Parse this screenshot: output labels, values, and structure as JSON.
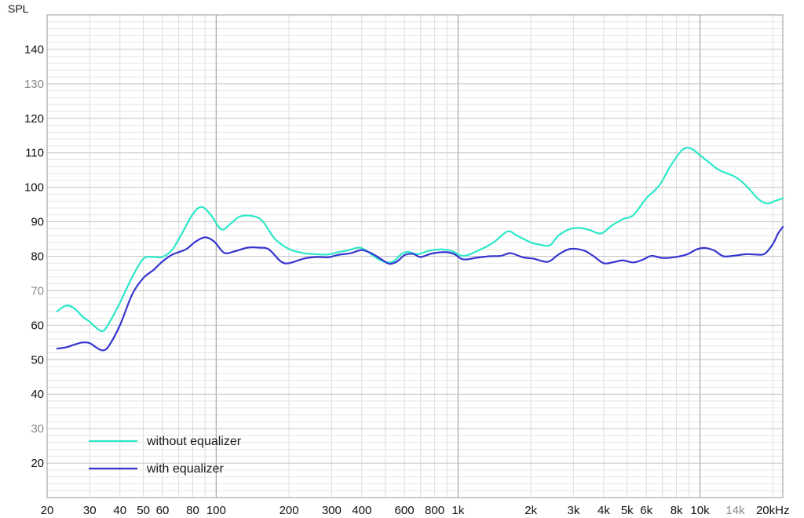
{
  "chart_data": {
    "type": "line",
    "title": "",
    "ylabel": "SPL",
    "xlabel": "",
    "x_scale": "log",
    "xlim": [
      20,
      22000
    ],
    "ylim": [
      10,
      150
    ],
    "grid": true,
    "legend_position": "bottom-left",
    "x_ticks": [
      {
        "value": 20,
        "label": "20",
        "muted": false
      },
      {
        "value": 30,
        "label": "30",
        "muted": false
      },
      {
        "value": 40,
        "label": "40",
        "muted": false
      },
      {
        "value": 50,
        "label": "50",
        "muted": false
      },
      {
        "value": 60,
        "label": "60",
        "muted": false
      },
      {
        "value": 80,
        "label": "80",
        "muted": false
      },
      {
        "value": 100,
        "label": "100",
        "muted": false
      },
      {
        "value": 200,
        "label": "200",
        "muted": false
      },
      {
        "value": 300,
        "label": "300",
        "muted": false
      },
      {
        "value": 400,
        "label": "400",
        "muted": false
      },
      {
        "value": 600,
        "label": "600",
        "muted": false
      },
      {
        "value": 800,
        "label": "800",
        "muted": false
      },
      {
        "value": 1000,
        "label": "1k",
        "muted": false
      },
      {
        "value": 2000,
        "label": "2k",
        "muted": false
      },
      {
        "value": 3000,
        "label": "3k",
        "muted": false
      },
      {
        "value": 4000,
        "label": "4k",
        "muted": false
      },
      {
        "value": 5000,
        "label": "5k",
        "muted": false
      },
      {
        "value": 6000,
        "label": "6k",
        "muted": false
      },
      {
        "value": 8000,
        "label": "8k",
        "muted": false
      },
      {
        "value": 10000,
        "label": "10k",
        "muted": false
      },
      {
        "value": 14000,
        "label": "14k",
        "muted": true
      },
      {
        "value": 20000,
        "label": "20kHz",
        "muted": false
      }
    ],
    "y_ticks": [
      {
        "value": 20,
        "label": "20",
        "muted": false
      },
      {
        "value": 30,
        "label": "30",
        "muted": true
      },
      {
        "value": 40,
        "label": "40",
        "muted": false
      },
      {
        "value": 50,
        "label": "50",
        "muted": false
      },
      {
        "value": 60,
        "label": "60",
        "muted": false
      },
      {
        "value": 70,
        "label": "70",
        "muted": true
      },
      {
        "value": 80,
        "label": "80",
        "muted": false
      },
      {
        "value": 90,
        "label": "90",
        "muted": false
      },
      {
        "value": 100,
        "label": "100",
        "muted": false
      },
      {
        "value": 110,
        "label": "110",
        "muted": false
      },
      {
        "value": 120,
        "label": "120",
        "muted": false
      },
      {
        "value": 130,
        "label": "130",
        "muted": true
      },
      {
        "value": 140,
        "label": "140",
        "muted": false
      }
    ],
    "series": [
      {
        "name": "without equalizer",
        "color": "#2de8c8",
        "points": [
          [
            22,
            64
          ],
          [
            24,
            65.7
          ],
          [
            26,
            64.8
          ],
          [
            28,
            62.5
          ],
          [
            30,
            61
          ],
          [
            32,
            59.2
          ],
          [
            34,
            58.3
          ],
          [
            36,
            60.5
          ],
          [
            40,
            66.5
          ],
          [
            45,
            74
          ],
          [
            50,
            79.3
          ],
          [
            55,
            79.8
          ],
          [
            60,
            79.8
          ],
          [
            66,
            82
          ],
          [
            72,
            86.5
          ],
          [
            80,
            92.2
          ],
          [
            87,
            94.3
          ],
          [
            95,
            92
          ],
          [
            105,
            87.8
          ],
          [
            115,
            89.5
          ],
          [
            125,
            91.5
          ],
          [
            140,
            91.7
          ],
          [
            155,
            90.3
          ],
          [
            175,
            85
          ],
          [
            200,
            82.1
          ],
          [
            230,
            80.9
          ],
          [
            260,
            80.6
          ],
          [
            290,
            80.5
          ],
          [
            320,
            81.2
          ],
          [
            350,
            81.7
          ],
          [
            390,
            82.5
          ],
          [
            420,
            81.5
          ],
          [
            460,
            79.5
          ],
          [
            500,
            78.3
          ],
          [
            540,
            78.5
          ],
          [
            580,
            80.5
          ],
          [
            620,
            81.3
          ],
          [
            680,
            80.6
          ],
          [
            760,
            81.6
          ],
          [
            860,
            82
          ],
          [
            950,
            81.4
          ],
          [
            1050,
            80.1
          ],
          [
            1200,
            81.5
          ],
          [
            1400,
            84
          ],
          [
            1600,
            87.2
          ],
          [
            1750,
            86
          ],
          [
            2000,
            84
          ],
          [
            2200,
            83.3
          ],
          [
            2400,
            83.2
          ],
          [
            2600,
            86
          ],
          [
            2900,
            87.9
          ],
          [
            3200,
            88.2
          ],
          [
            3500,
            87.6
          ],
          [
            3900,
            86.6
          ],
          [
            4300,
            88.8
          ],
          [
            4800,
            90.8
          ],
          [
            5300,
            91.9
          ],
          [
            6000,
            96.8
          ],
          [
            6800,
            100.6
          ],
          [
            7600,
            106.5
          ],
          [
            8500,
            111
          ],
          [
            9200,
            111.2
          ],
          [
            10000,
            109.3
          ],
          [
            11000,
            107
          ],
          [
            12000,
            105
          ],
          [
            14000,
            103
          ],
          [
            15500,
            100.5
          ],
          [
            17500,
            96.5
          ],
          [
            19000,
            95.3
          ],
          [
            20500,
            96.1
          ],
          [
            22000,
            96.8
          ]
        ]
      },
      {
        "name": "with equalizer",
        "color": "#3535d0",
        "points": [
          [
            22,
            53.2
          ],
          [
            24,
            53.6
          ],
          [
            26,
            54.4
          ],
          [
            28,
            55
          ],
          [
            30,
            54.8
          ],
          [
            32,
            53.5
          ],
          [
            34,
            52.7
          ],
          [
            36,
            54
          ],
          [
            40,
            60
          ],
          [
            45,
            69
          ],
          [
            50,
            73.7
          ],
          [
            55,
            76
          ],
          [
            60,
            78.5
          ],
          [
            66,
            80.5
          ],
          [
            75,
            82
          ],
          [
            82,
            84.2
          ],
          [
            90,
            85.5
          ],
          [
            98,
            84.3
          ],
          [
            108,
            81
          ],
          [
            120,
            81.5
          ],
          [
            135,
            82.5
          ],
          [
            150,
            82.5
          ],
          [
            165,
            82
          ],
          [
            185,
            78.5
          ],
          [
            200,
            78
          ],
          [
            230,
            79.3
          ],
          [
            260,
            79.8
          ],
          [
            290,
            79.7
          ],
          [
            320,
            80.4
          ],
          [
            360,
            80.9
          ],
          [
            400,
            81.8
          ],
          [
            440,
            80.8
          ],
          [
            480,
            79.2
          ],
          [
            520,
            77.8
          ],
          [
            560,
            78.5
          ],
          [
            600,
            80.3
          ],
          [
            650,
            80.7
          ],
          [
            700,
            79.8
          ],
          [
            780,
            80.8
          ],
          [
            880,
            81.2
          ],
          [
            960,
            80.7
          ],
          [
            1050,
            79.1
          ],
          [
            1200,
            79.6
          ],
          [
            1350,
            80
          ],
          [
            1500,
            80.1
          ],
          [
            1650,
            80.9
          ],
          [
            1850,
            79.7
          ],
          [
            2050,
            79.3
          ],
          [
            2350,
            78.4
          ],
          [
            2600,
            80.5
          ],
          [
            2900,
            82.1
          ],
          [
            3300,
            81.7
          ],
          [
            3600,
            80.2
          ],
          [
            4000,
            78
          ],
          [
            4400,
            78.3
          ],
          [
            4800,
            78.8
          ],
          [
            5300,
            78.2
          ],
          [
            5800,
            79
          ],
          [
            6300,
            80.1
          ],
          [
            7000,
            79.5
          ],
          [
            7800,
            79.7
          ],
          [
            8800,
            80.5
          ],
          [
            9700,
            82
          ],
          [
            10500,
            82.4
          ],
          [
            11500,
            81.6
          ],
          [
            12500,
            80
          ],
          [
            14000,
            80.2
          ],
          [
            15500,
            80.6
          ],
          [
            17000,
            80.5
          ],
          [
            18500,
            80.7
          ],
          [
            20000,
            83.5
          ],
          [
            21000,
            86.5
          ],
          [
            22000,
            88.5
          ]
        ]
      }
    ]
  }
}
